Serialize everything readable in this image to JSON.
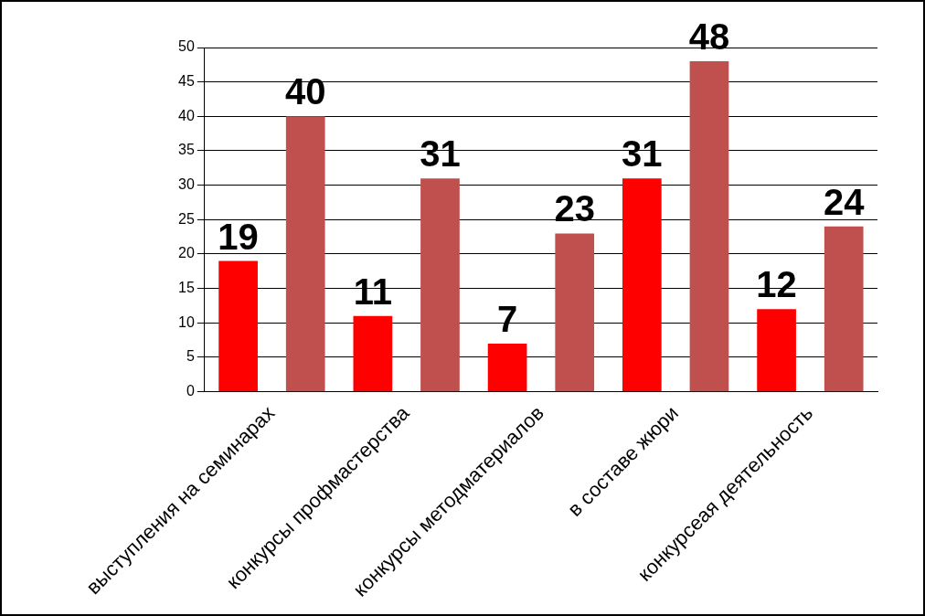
{
  "chart_data": {
    "type": "bar",
    "categories": [
      "выступления на семинарах",
      "конкурсы профмастерства",
      "конкурсы методматериалов",
      "в составе жюри",
      "конкурсеая деятельность"
    ],
    "series": [
      {
        "color": "#ff0000",
        "values": [
          19,
          11,
          7,
          31,
          12
        ]
      },
      {
        "color": "#c0504d",
        "values": [
          40,
          31,
          23,
          48,
          24
        ]
      }
    ],
    "ylim": [
      0,
      50
    ],
    "yticks": [
      0,
      5,
      10,
      15,
      20,
      25,
      30,
      35,
      40,
      45,
      50
    ],
    "grid": "y",
    "legend": false,
    "data_labels": true
  }
}
